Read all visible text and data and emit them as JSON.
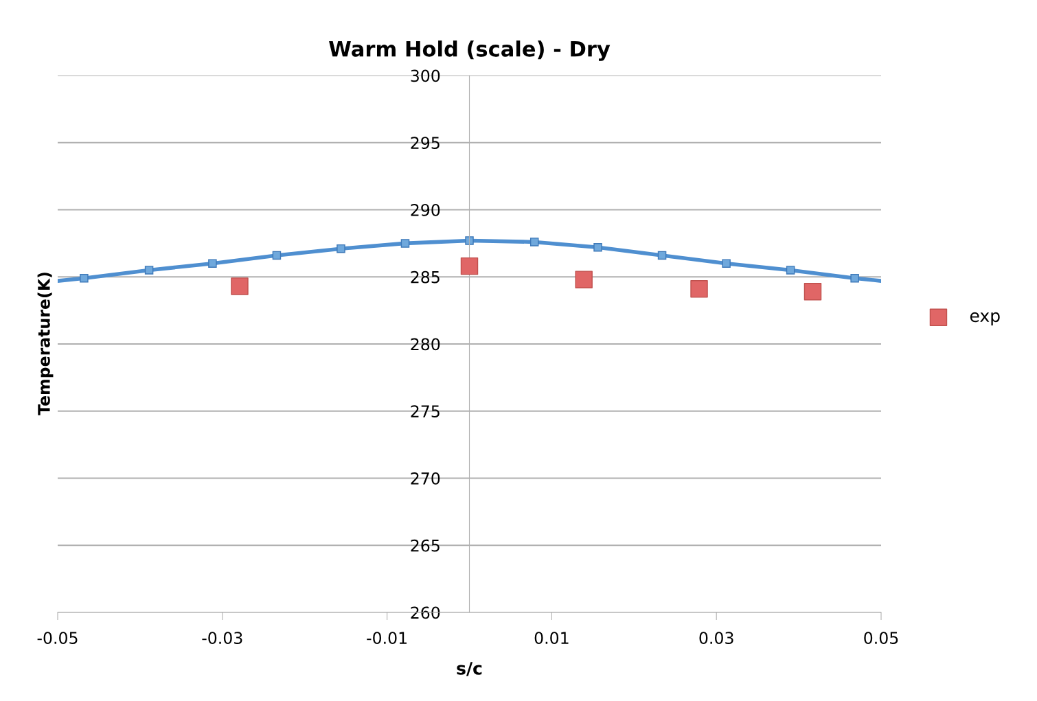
{
  "chart_data": {
    "type": "scatter",
    "title": "Warm Hold (scale) - Dry",
    "xlabel": "s/c",
    "ylabel": "Temperature(K)",
    "xlim": [
      -0.05,
      0.05
    ],
    "xticks": [
      -0.05,
      -0.03,
      -0.01,
      0.01,
      0.03,
      0.05
    ],
    "ylim": [
      260,
      300
    ],
    "yticks": [
      260,
      265,
      270,
      275,
      280,
      285,
      290,
      295,
      300
    ],
    "grid": "y",
    "legend": "right",
    "marker": "square",
    "series": [
      {
        "name": "exp",
        "color": "#e06666",
        "x": [
          -0.0279,
          0.0,
          0.0139,
          0.0279,
          0.0417
        ],
        "values": [
          284.3,
          285.8,
          284.8,
          284.1,
          283.9
        ]
      },
      {
        "type": "line",
        "color": "#4f8fd0",
        "x": [
          -0.05,
          -0.0468,
          -0.0389,
          -0.0312,
          -0.0234,
          -0.0156,
          -0.0078,
          0.0,
          0.0079,
          0.0156,
          0.0234,
          0.0312,
          0.039,
          0.0468,
          0.05
        ],
        "values": [
          284.7,
          284.9,
          285.5,
          286.0,
          286.6,
          287.1,
          287.5,
          287.7,
          287.6,
          287.2,
          286.6,
          286.0,
          285.5,
          284.9,
          284.7
        ]
      }
    ]
  }
}
